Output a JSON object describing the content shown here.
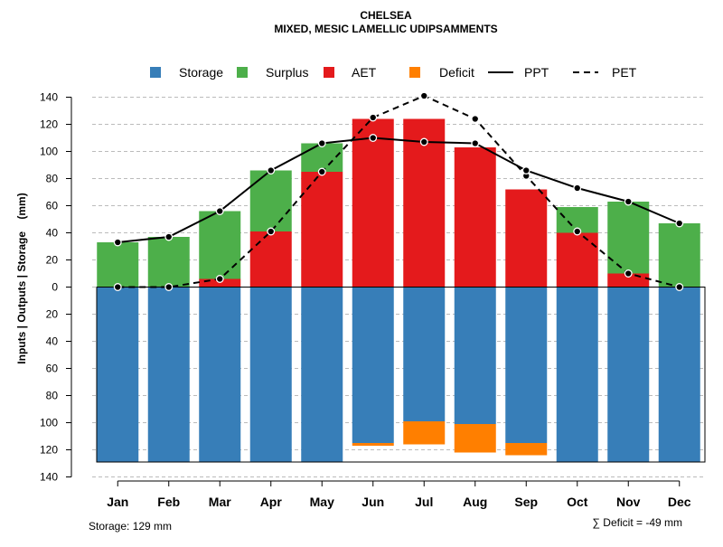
{
  "colors": {
    "storage": "#377EB8",
    "surplus": "#4DAF4A",
    "aet": "#E41A1C",
    "deficit": "#FF7F00",
    "line": "#000000",
    "grid": "#BBBBBB"
  },
  "chart_data": {
    "type": "bar",
    "title": "CHELSEA",
    "subtitle": "MIXED, MESIC LAMELLIC UDIPSAMMENTS",
    "ylabel": "Inputs | Outputs | Storage    (mm)",
    "ylim": [
      -140,
      140
    ],
    "y_ticks": [
      140,
      120,
      100,
      80,
      60,
      40,
      20,
      0,
      -20,
      -40,
      -60,
      -80,
      -100,
      -120,
      -140
    ],
    "y_tick_labels": [
      "140",
      "120",
      "100",
      "80",
      "60",
      "40",
      "20",
      "0",
      "20",
      "40",
      "60",
      "80",
      "100",
      "120",
      "140"
    ],
    "grid": true,
    "legend": [
      "Storage",
      "Surplus",
      "AET",
      "Deficit",
      "PPT",
      "PET"
    ],
    "legend_position": "top",
    "categories": [
      "Jan",
      "Feb",
      "Mar",
      "Apr",
      "May",
      "Jun",
      "Jul",
      "Aug",
      "Sep",
      "Oct",
      "Nov",
      "Dec"
    ],
    "series": [
      {
        "name": "AET",
        "kind": "bar-up",
        "values": [
          0,
          0,
          6,
          41,
          85,
          124,
          124,
          103,
          72,
          40,
          10,
          0
        ]
      },
      {
        "name": "Surplus",
        "kind": "bar-up-stacked",
        "values": [
          33,
          37,
          50,
          45,
          21,
          0,
          0,
          0,
          0,
          19,
          53,
          47
        ]
      },
      {
        "name": "Storage",
        "kind": "bar-down",
        "values": [
          129,
          129,
          129,
          129,
          129,
          115,
          99,
          101,
          115,
          129,
          129,
          129
        ]
      },
      {
        "name": "Deficit",
        "kind": "bar-down-stacked",
        "values": [
          0,
          0,
          0,
          0,
          0,
          2,
          17,
          21,
          9,
          0,
          0,
          0
        ]
      },
      {
        "name": "PPT",
        "kind": "line-solid",
        "values": [
          33,
          37,
          56,
          86,
          106,
          110,
          107,
          106,
          86,
          73,
          63,
          47
        ]
      },
      {
        "name": "PET",
        "kind": "line-dashed",
        "values": [
          0,
          0,
          6,
          41,
          85,
          125,
          141,
          124,
          82,
          41,
          10,
          0
        ]
      }
    ],
    "storage_capacity": 129,
    "annotations": {
      "storage": "Storage: 129 mm",
      "deficit": "∑ Deficit = -49 mm"
    }
  }
}
